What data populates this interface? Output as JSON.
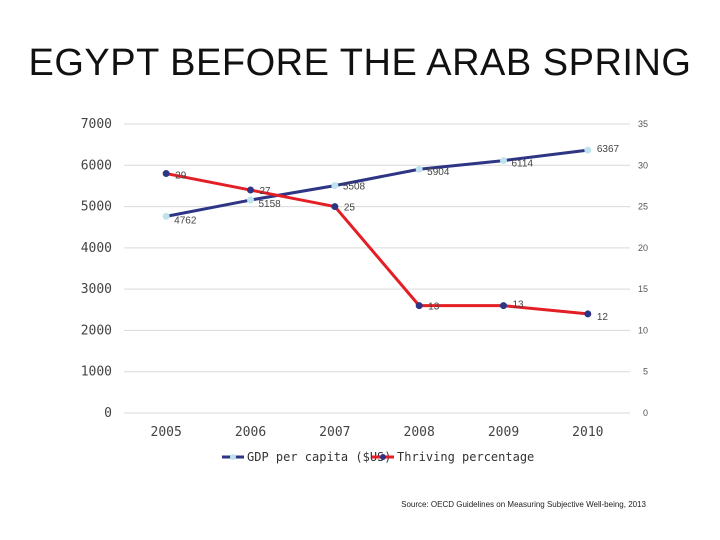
{
  "slide": {
    "title": "EGYPT BEFORE THE ARAB SPRING",
    "source": "Source: OECD Guidelines on Measuring Subjective Well-being, 2013"
  },
  "chart_data": {
    "type": "line",
    "categories": [
      "2005",
      "2006",
      "2007",
      "2008",
      "2009",
      "2010"
    ],
    "y_left": {
      "ticks": [
        "0",
        "1000",
        "2000",
        "3000",
        "4000",
        "5000",
        "6000",
        "7000"
      ],
      "ylim": [
        0,
        7000
      ]
    },
    "y_right": {
      "ticks": [
        "0",
        "5",
        "10",
        "15",
        "20",
        "25",
        "30",
        "35"
      ],
      "ylim": [
        0,
        35
      ]
    },
    "grid": true,
    "legend_position": "bottom",
    "series": [
      {
        "name": "GDP per capita ($US)",
        "axis": "left",
        "color": "#2e3584",
        "marker_color": "#bfe3ee",
        "values": [
          4762,
          5158,
          5508,
          5904,
          6114,
          6367
        ],
        "labels": [
          "4762",
          "5158",
          "5508",
          "5904",
          "6114",
          "6367"
        ]
      },
      {
        "name": "Thriving percentage",
        "axis": "right",
        "color": "#e31e24",
        "marker_color": "#2e3584",
        "values": [
          29,
          27,
          25,
          13,
          13,
          12
        ],
        "labels": [
          "29",
          "27",
          "25",
          "13",
          "13",
          "12"
        ]
      }
    ]
  }
}
